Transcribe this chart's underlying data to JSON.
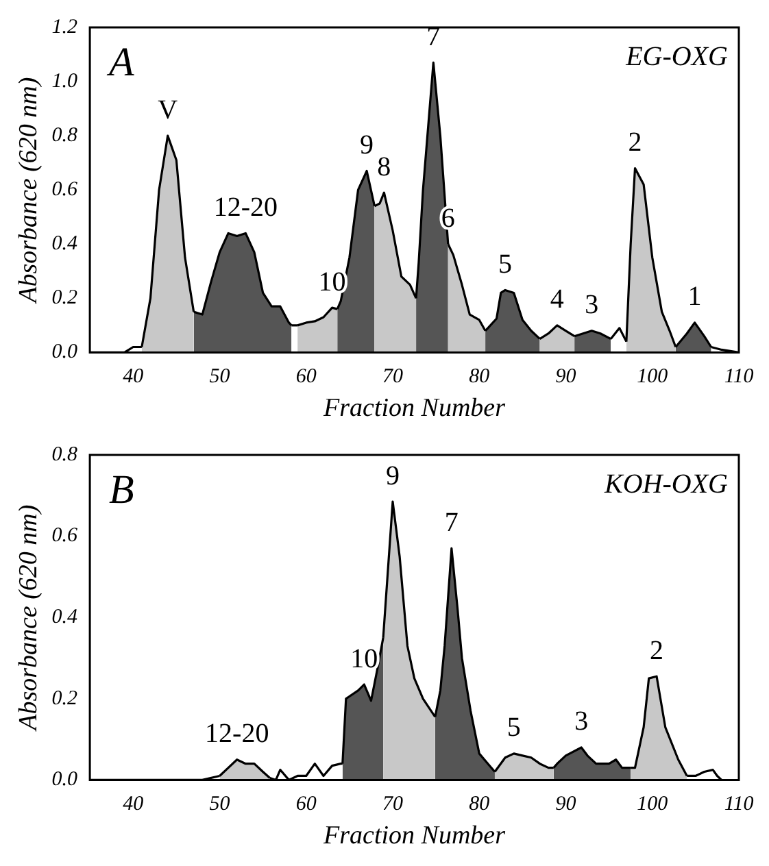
{
  "chart_data": [
    {
      "type": "area",
      "xlabel": "Fraction Number",
      "ylabel": "Absorbance (620 nm)",
      "xlim": [
        35,
        110
      ],
      "xticks": [
        40,
        50,
        60,
        70,
        80,
        90,
        100,
        110
      ],
      "ylim": [
        0,
        1.2
      ],
      "yticks": [
        {
          "value": 0,
          "label": "0.0"
        },
        {
          "value": 0.2,
          "label": "0.2"
        },
        {
          "value": 0.4,
          "label": "0.4"
        },
        {
          "value": 0.6,
          "label": "0.6"
        },
        {
          "value": 0.8,
          "label": "0.8"
        },
        {
          "value": 1.0,
          "label": "1.0"
        },
        {
          "value": 1.2,
          "label": "1.2"
        }
      ],
      "grid": false,
      "legend": false,
      "marker": "none",
      "annotations": [
        "A",
        "EG-OXG",
        {
          "text": "V",
          "x": 44,
          "y": 0.8
        },
        {
          "text": "12-20",
          "x": 53,
          "y": 0.44
        },
        {
          "text": "10",
          "x": 63,
          "y": 0.165
        },
        {
          "text": "9",
          "x": 67,
          "y": 0.67
        },
        {
          "text": "8",
          "x": 69,
          "y": 0.59
        },
        {
          "text": "7",
          "x": 74.7,
          "y": 1.07
        },
        {
          "text": "6",
          "x": 76.4,
          "y": 0.4
        },
        {
          "text": "5",
          "x": 83,
          "y": 0.23
        },
        {
          "text": "4",
          "x": 89,
          "y": 0.1
        },
        {
          "text": "3",
          "x": 93,
          "y": 0.08
        },
        {
          "text": "2",
          "x": 98,
          "y": 0.68
        },
        {
          "text": "1",
          "x": 104.9,
          "y": 0.11
        }
      ],
      "series": [
        {
          "type": "line",
          "color": "#000000",
          "x": [
            35,
            39,
            40,
            41
          ],
          "values": [
            0,
            0,
            0.02,
            0.02
          ]
        },
        {
          "type": "area",
          "color": "#c8c8c8",
          "x": [
            41,
            42,
            43,
            44,
            45,
            46,
            47
          ],
          "values": [
            0.02,
            0.2,
            0.6,
            0.8,
            0.71,
            0.35,
            0.15
          ]
        },
        {
          "type": "area",
          "color": "#555555",
          "x": [
            47,
            48,
            49,
            50,
            51,
            52,
            53,
            54,
            55,
            56,
            57,
            58,
            58.3
          ],
          "values": [
            0.15,
            0.14,
            0.26,
            0.37,
            0.44,
            0.43,
            0.44,
            0.37,
            0.22,
            0.17,
            0.17,
            0.11,
            0.1
          ]
        },
        {
          "type": "line",
          "color": "#000000",
          "x": [
            58.3,
            59
          ],
          "values": [
            0.1,
            0.1
          ]
        },
        {
          "type": "area",
          "color": "#c8c8c8",
          "x": [
            59,
            60,
            61,
            62,
            63,
            63.6
          ],
          "values": [
            0.1,
            0.11,
            0.115,
            0.13,
            0.165,
            0.16
          ]
        },
        {
          "type": "area",
          "color": "#555555",
          "x": [
            63.6,
            64,
            65,
            66,
            67,
            67.9
          ],
          "values": [
            0.16,
            0.19,
            0.35,
            0.6,
            0.67,
            0.54
          ]
        },
        {
          "type": "area",
          "color": "#c8c8c8",
          "x": [
            67.9,
            68.5,
            69,
            70,
            71,
            72,
            72.7
          ],
          "values": [
            0.54,
            0.55,
            0.59,
            0.45,
            0.28,
            0.25,
            0.2
          ]
        },
        {
          "type": "area",
          "color": "#555555",
          "x": [
            72.7,
            73,
            73.5,
            74.7,
            75.5,
            76.4
          ],
          "values": [
            0.2,
            0.33,
            0.6,
            1.07,
            0.8,
            0.4
          ]
        },
        {
          "type": "area",
          "color": "#c8c8c8",
          "x": [
            76.4,
            77,
            78,
            78.9,
            80,
            80.7
          ],
          "values": [
            0.4,
            0.36,
            0.25,
            0.14,
            0.12,
            0.08
          ]
        },
        {
          "type": "area",
          "color": "#555555",
          "x": [
            80.7,
            81,
            82,
            82.5,
            83,
            84,
            85,
            86,
            87
          ],
          "values": [
            0.08,
            0.09,
            0.125,
            0.22,
            0.23,
            0.22,
            0.12,
            0.08,
            0.05
          ]
        },
        {
          "type": "area",
          "color": "#c8c8c8",
          "x": [
            87,
            88,
            89,
            90,
            91
          ],
          "values": [
            0.05,
            0.07,
            0.1,
            0.08,
            0.06
          ]
        },
        {
          "type": "area",
          "color": "#555555",
          "x": [
            91,
            92,
            93,
            94,
            95.2
          ],
          "values": [
            0.06,
            0.07,
            0.08,
            0.07,
            0.05
          ]
        },
        {
          "type": "line",
          "color": "#000000",
          "x": [
            95.2,
            96.2,
            97
          ],
          "values": [
            0.05,
            0.09,
            0.04
          ]
        },
        {
          "type": "area",
          "color": "#c8c8c8",
          "x": [
            97,
            97.5,
            98,
            99,
            100,
            101.1,
            102,
            102.7
          ],
          "values": [
            0.04,
            0.4,
            0.68,
            0.62,
            0.35,
            0.15,
            0.08,
            0.02
          ]
        },
        {
          "type": "area",
          "color": "#555555",
          "x": [
            102.7,
            104,
            104.9,
            106,
            106.8
          ],
          "values": [
            0.02,
            0.07,
            0.11,
            0.06,
            0.02
          ]
        },
        {
          "type": "line",
          "color": "#000000",
          "x": [
            106.8,
            108,
            109,
            110
          ],
          "values": [
            0.02,
            0.01,
            0.005,
            0
          ]
        }
      ]
    },
    {
      "type": "area",
      "xlabel": "Fraction Number",
      "ylabel": "Absorbance (620 nm)",
      "xlim": [
        35,
        110
      ],
      "xticks": [
        40,
        50,
        60,
        70,
        80,
        90,
        100,
        110
      ],
      "ylim": [
        0,
        0.8
      ],
      "yticks": [
        {
          "value": 0,
          "label": "0.0"
        },
        {
          "value": 0.2,
          "label": "0.2"
        },
        {
          "value": 0.4,
          "label": "0.4"
        },
        {
          "value": 0.6,
          "label": "0.6"
        },
        {
          "value": 0.8,
          "label": "0.8"
        }
      ],
      "grid": false,
      "legend": false,
      "marker": "none",
      "annotations": [
        "B",
        "KOH-OXG",
        {
          "text": "12-20",
          "x": 52,
          "y": 0.05
        },
        {
          "text": "10",
          "x": 66.7,
          "y": 0.235
        },
        {
          "text": "9",
          "x": 70,
          "y": 0.685
        },
        {
          "text": "7",
          "x": 76.8,
          "y": 0.57
        },
        {
          "text": "5",
          "x": 84,
          "y": 0.065
        },
        {
          "text": "3",
          "x": 91.8,
          "y": 0.08
        },
        {
          "text": "2",
          "x": 100.5,
          "y": 0.255
        }
      ],
      "series": [
        {
          "type": "line",
          "color": "#000000",
          "x": [
            35,
            48,
            50
          ],
          "values": [
            0,
            0,
            0.01
          ]
        },
        {
          "type": "area",
          "color": "#c8c8c8",
          "x": [
            50,
            51,
            52,
            53,
            54,
            55,
            55.8
          ],
          "values": [
            0.01,
            0.03,
            0.05,
            0.04,
            0.04,
            0.02,
            0.005
          ]
        },
        {
          "type": "line",
          "color": "#000000",
          "x": [
            55.8,
            56.5,
            57,
            58,
            59,
            60,
            61,
            62,
            63,
            64,
            64.2
          ],
          "values": [
            0.005,
            0,
            0.025,
            0,
            0.01,
            0.01,
            0.04,
            0.01,
            0.035,
            0.04,
            0.04
          ]
        },
        {
          "type": "area",
          "color": "#555555",
          "x": [
            64.2,
            64.6,
            66,
            66.7,
            67.5,
            68.2,
            68.9
          ],
          "values": [
            0.04,
            0.2,
            0.22,
            0.235,
            0.195,
            0.27,
            0.35
          ]
        },
        {
          "type": "area",
          "color": "#c8c8c8",
          "x": [
            68.9,
            70,
            70.8,
            71.7,
            72.5,
            73.5,
            74.9
          ],
          "values": [
            0.35,
            0.685,
            0.55,
            0.33,
            0.25,
            0.2,
            0.155
          ]
        },
        {
          "type": "area",
          "color": "#555555",
          "x": [
            74.9,
            75.5,
            76,
            76.8,
            77.5,
            78,
            79,
            80,
            81,
            81.8
          ],
          "values": [
            0.155,
            0.22,
            0.33,
            0.57,
            0.42,
            0.3,
            0.17,
            0.065,
            0.04,
            0.02
          ]
        },
        {
          "type": "area",
          "color": "#c8c8c8",
          "x": [
            81.8,
            83,
            84,
            85,
            86,
            87,
            88,
            88.6
          ],
          "values": [
            0.02,
            0.055,
            0.065,
            0.06,
            0.055,
            0.04,
            0.03,
            0.03
          ]
        },
        {
          "type": "area",
          "color": "#555555",
          "x": [
            88.6,
            89,
            90,
            91.8,
            92.5,
            93.5,
            95,
            95.8,
            96.5,
            97.5
          ],
          "values": [
            0.03,
            0.04,
            0.06,
            0.08,
            0.06,
            0.04,
            0.04,
            0.05,
            0.03,
            0.03
          ]
        },
        {
          "type": "area",
          "color": "#c8c8c8",
          "x": [
            97.5,
            98,
            99,
            99.6,
            100.5,
            101.5,
            103,
            104
          ],
          "values": [
            0.03,
            0.03,
            0.13,
            0.25,
            0.255,
            0.13,
            0.05,
            0.01
          ]
        },
        {
          "type": "line",
          "color": "#000000",
          "x": [
            104,
            105,
            106,
            107,
            107.5,
            108
          ],
          "values": [
            0.01,
            0.01,
            0.02,
            0.025,
            0.01,
            0
          ]
        }
      ]
    }
  ]
}
